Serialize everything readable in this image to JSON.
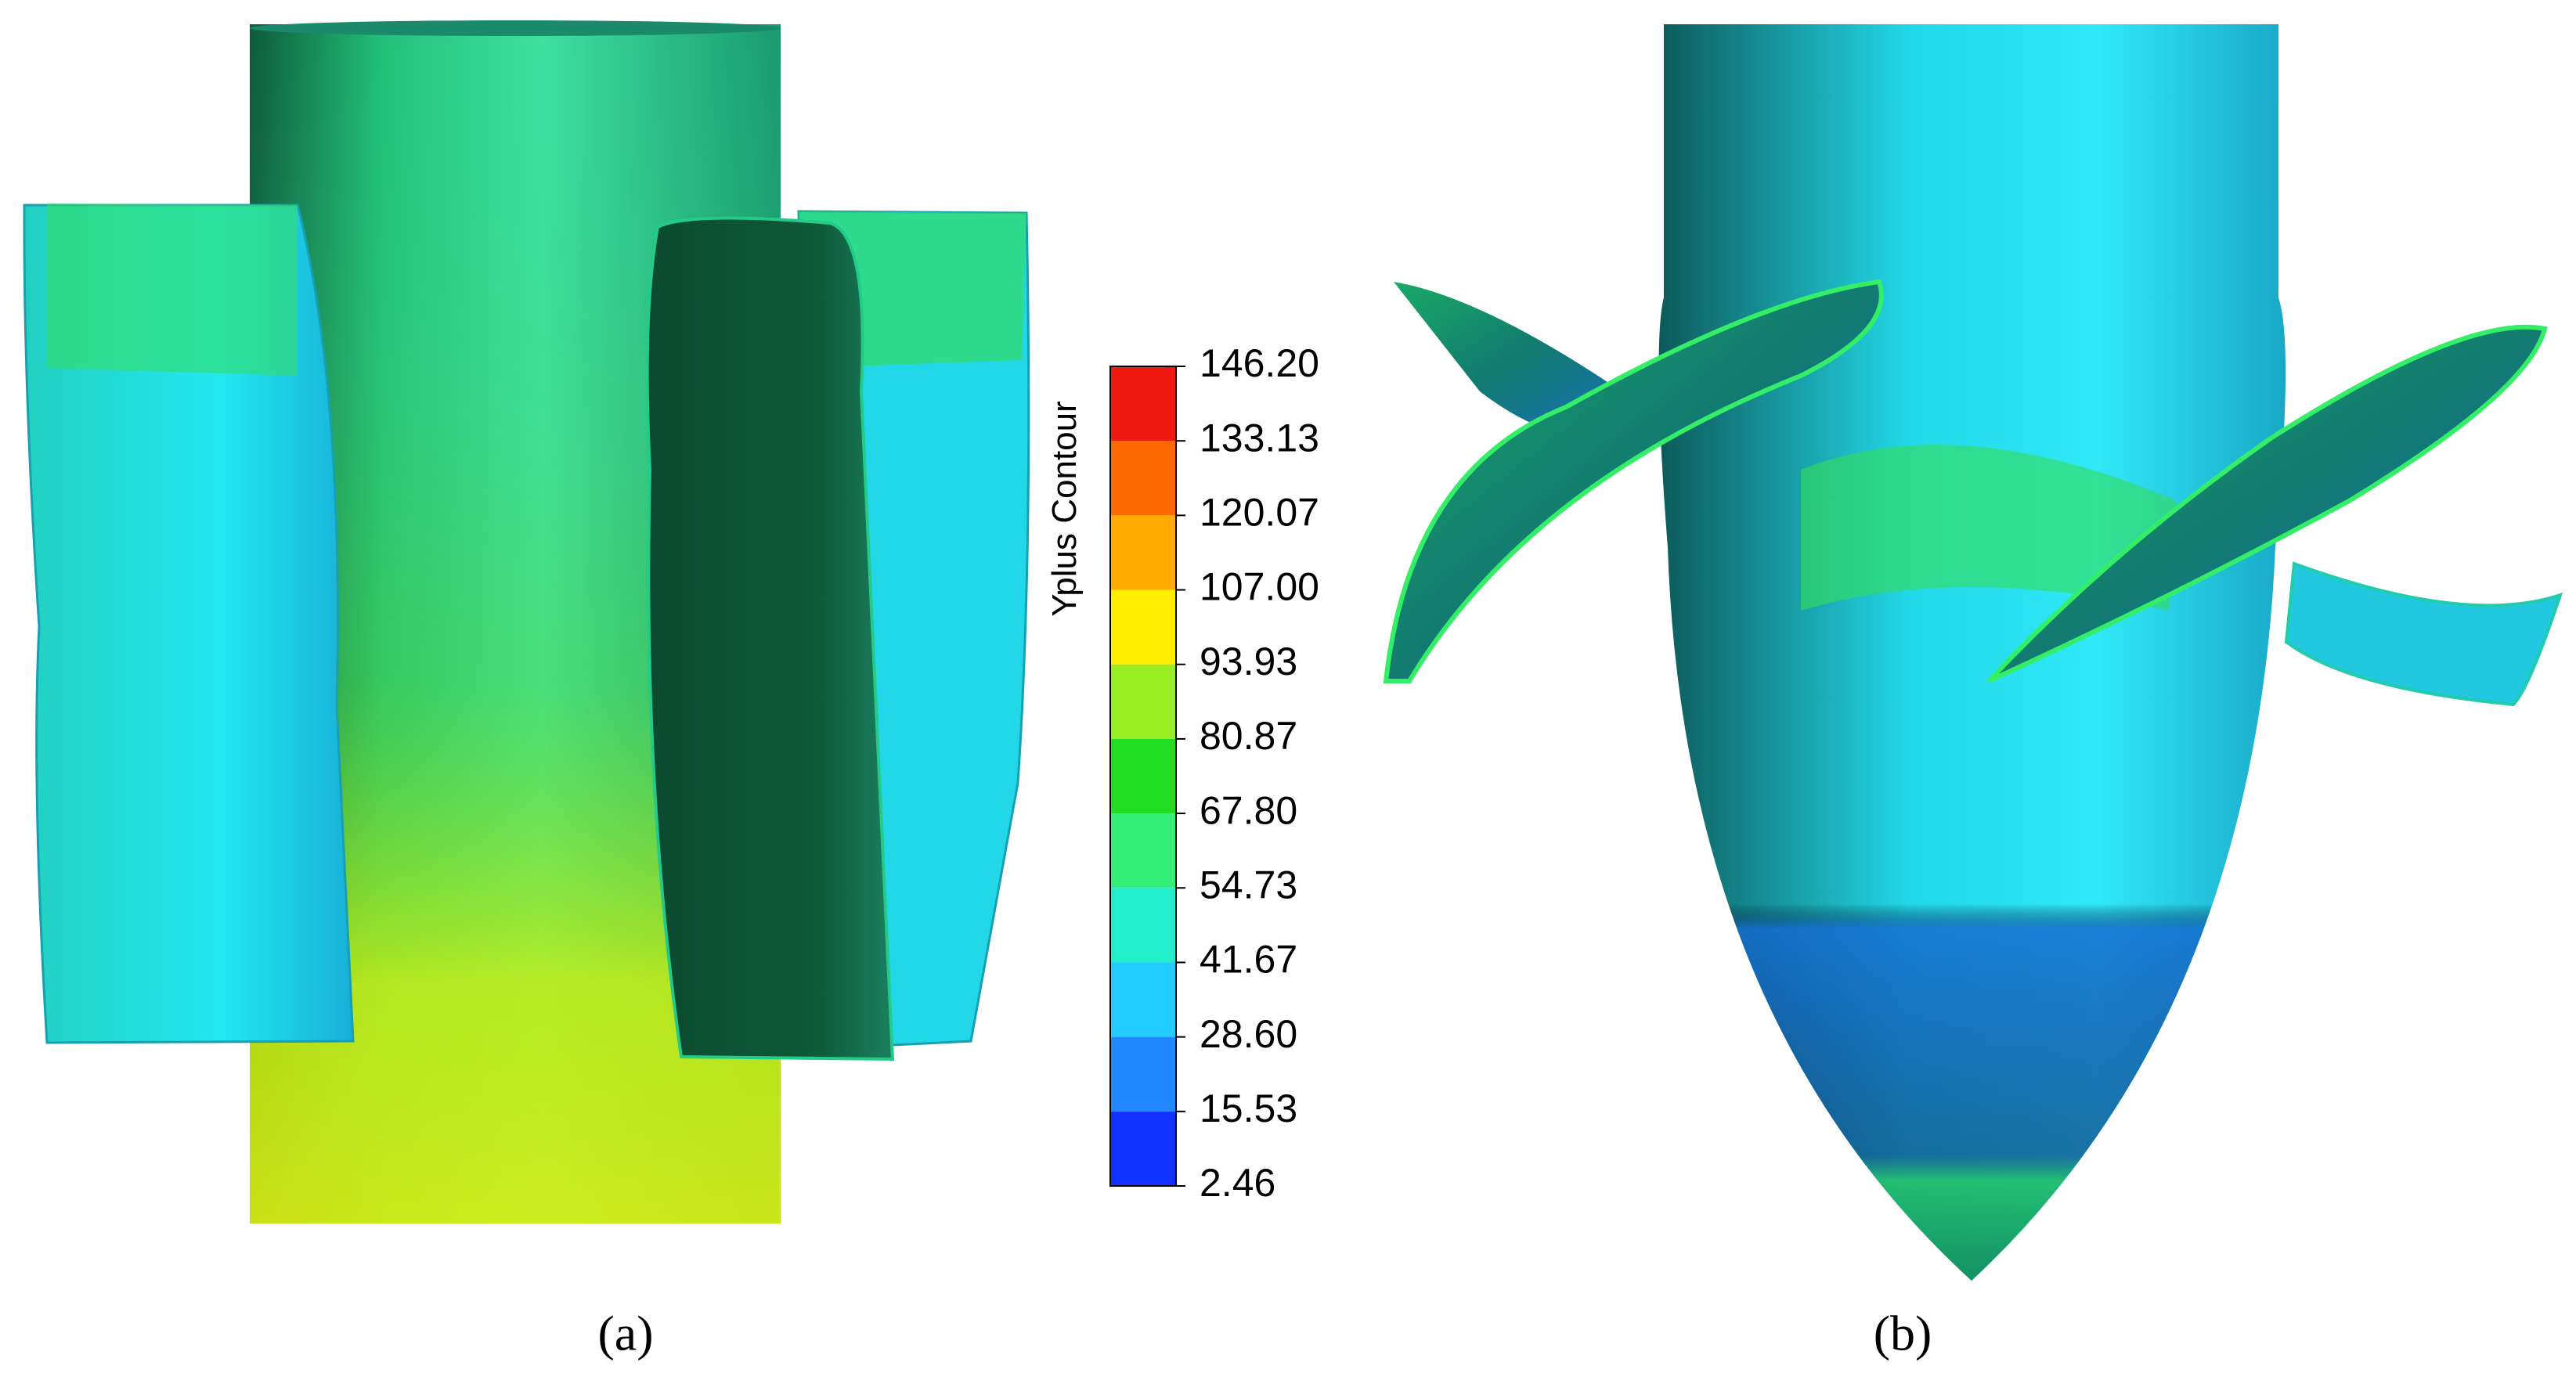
{
  "colorbar": {
    "title": "Yplus Contour",
    "ticks": [
      "146.20",
      "133.13",
      "120.07",
      "107.00",
      "93.93",
      "80.87",
      "67.80",
      "54.73",
      "41.67",
      "28.60",
      "15.53",
      "2.46"
    ],
    "band_colors": [
      "#ee1a12",
      "#ff6a00",
      "#ffaa00",
      "#ffee00",
      "#99ee22",
      "#22dd22",
      "#33ee77",
      "#22eecc",
      "#22ccff",
      "#2288ff",
      "#1133ff"
    ]
  },
  "panels": [
    {
      "label": "(a)"
    },
    {
      "label": "(b)"
    }
  ]
}
